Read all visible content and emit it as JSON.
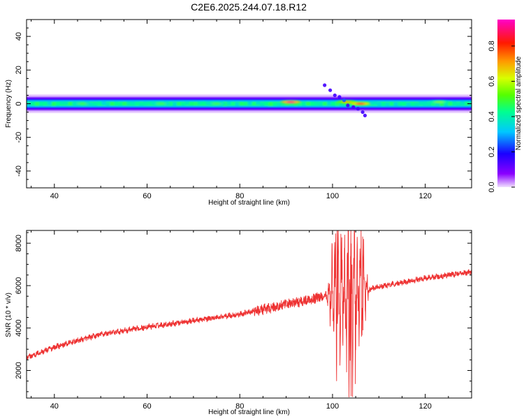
{
  "figure": {
    "title": "C2E6.2025.244.07.18.R12"
  },
  "chart_data": [
    {
      "type": "heatmap",
      "title": "C2E6.2025.244.07.18.R12",
      "xlabel": "Height of straight line (km)",
      "ylabel": "Frequency (Hz)",
      "xlim": [
        34,
        130
      ],
      "ylim": [
        -50,
        50
      ],
      "x_ticks": [
        40,
        60,
        80,
        100,
        120
      ],
      "y_ticks": [
        -40,
        -20,
        0,
        20,
        40
      ],
      "grid": false,
      "colorbar": {
        "label": "Normalized spectral amplitude",
        "range": [
          0,
          0.95
        ],
        "ticks": [
          "0.0",
          "0.2",
          "0.4",
          "0.6",
          "0.8"
        ],
        "colormap": "rainbow (violet-blue-cyan-green-yellow-red-magenta)"
      },
      "band": {
        "center_hz": 0,
        "half_width_hz": 3,
        "typical_amplitude": 0.45
      },
      "hotspots": [
        {
          "x": 46,
          "y": 0,
          "value": 0.5
        },
        {
          "x": 63,
          "y": 0,
          "value": 0.5
        },
        {
          "x": 75,
          "y": 0,
          "value": 0.5
        },
        {
          "x": 91,
          "y": 1,
          "value": 0.9
        },
        {
          "x": 103,
          "y": 1,
          "value": 0.7
        },
        {
          "x": 106,
          "y": 0,
          "value": 0.85
        },
        {
          "x": 123,
          "y": 1,
          "value": 0.55
        }
      ],
      "scatter_points": [
        {
          "x": 98.3,
          "y": 11,
          "value": 0.15
        },
        {
          "x": 99.5,
          "y": 8,
          "value": 0.15
        },
        {
          "x": 100.5,
          "y": 5,
          "value": 0.15
        },
        {
          "x": 101.5,
          "y": 4,
          "value": 0.15
        },
        {
          "x": 102.5,
          "y": 2,
          "value": 0.25
        },
        {
          "x": 103.3,
          "y": -1,
          "value": 0.15
        },
        {
          "x": 104.5,
          "y": -2,
          "value": 0.15
        },
        {
          "x": 105.5,
          "y": -3,
          "value": 0.15
        },
        {
          "x": 106.5,
          "y": -5,
          "value": 0.15
        },
        {
          "x": 107.0,
          "y": -7,
          "value": 0.15
        }
      ]
    },
    {
      "type": "line",
      "xlabel": "Height of straight line (km)",
      "ylabel": "SNR (10 * v/v)",
      "xlim": [
        34,
        130
      ],
      "ylim": [
        700,
        8600
      ],
      "x_ticks": [
        40,
        60,
        80,
        100,
        120
      ],
      "y_ticks": [
        2000,
        4000,
        6000,
        8000
      ],
      "grid": false,
      "color": "#ee3333",
      "trend": [
        {
          "x": 34,
          "y": 2600
        },
        {
          "x": 40,
          "y": 3100
        },
        {
          "x": 50,
          "y": 3700
        },
        {
          "x": 60,
          "y": 4050
        },
        {
          "x": 70,
          "y": 4350
        },
        {
          "x": 80,
          "y": 4650
        },
        {
          "x": 90,
          "y": 5100
        },
        {
          "x": 98,
          "y": 5500
        },
        {
          "x": 108,
          "y": 5850
        },
        {
          "x": 115,
          "y": 6150
        },
        {
          "x": 120,
          "y": 6350
        },
        {
          "x": 130,
          "y": 6650
        }
      ],
      "extremes": [
        {
          "x": 101,
          "y": 8600
        },
        {
          "x": 104,
          "y": 800
        },
        {
          "x": 106.5,
          "y": 8300
        }
      ]
    }
  ]
}
